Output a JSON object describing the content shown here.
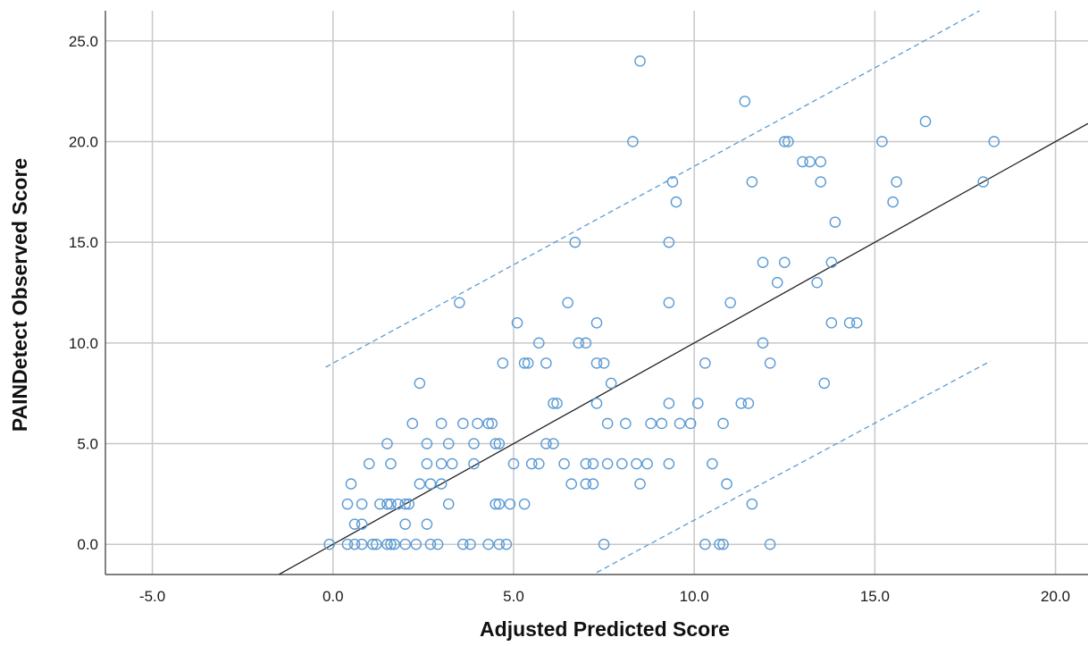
{
  "chart_data": {
    "type": "scatter",
    "xlabel": "Adjusted Predicted Score",
    "ylabel": "PAINDetect Observed Score",
    "xlim": [
      -6.3,
      20.9
    ],
    "ylim": [
      -1.5,
      26.5
    ],
    "x_ticks": [
      -5.0,
      0.0,
      5.0,
      10.0,
      15.0,
      20.0
    ],
    "y_ticks": [
      0.0,
      5.0,
      10.0,
      15.0,
      20.0,
      25.0
    ],
    "x_tick_labels": [
      "-5.0",
      "0.0",
      "5.0",
      "10.0",
      "15.0",
      "20.0"
    ],
    "y_tick_labels": [
      "0.0",
      "5.0",
      "10.0",
      "15.0",
      "20.0",
      "25.0"
    ],
    "grid": true,
    "colors": {
      "points": "#5b9bd5",
      "reference_line": "#222222",
      "bounds": "#5b9bd5",
      "grid": "#c8c8c8"
    },
    "reference_line": {
      "style": "solid",
      "x": [
        -1.6,
        20.9
      ],
      "y": [
        -1.6,
        20.9
      ]
    },
    "bound_lines": [
      {
        "name": "upper",
        "style": "dashed",
        "x": [
          -0.2,
          17.9
        ],
        "y": [
          8.8,
          26.5
        ]
      },
      {
        "name": "lower",
        "style": "dashed",
        "x": [
          7.3,
          18.2
        ],
        "y": [
          -1.4,
          9.1
        ]
      }
    ],
    "points": [
      [
        -0.1,
        0
      ],
      [
        0.4,
        0
      ],
      [
        0.6,
        0
      ],
      [
        0.8,
        0
      ],
      [
        1.1,
        0
      ],
      [
        1.2,
        0
      ],
      [
        1.5,
        0
      ],
      [
        1.6,
        0
      ],
      [
        1.7,
        0
      ],
      [
        2.0,
        0
      ],
      [
        2.3,
        0
      ],
      [
        2.7,
        0
      ],
      [
        2.9,
        0
      ],
      [
        3.6,
        0
      ],
      [
        3.8,
        0
      ],
      [
        4.3,
        0
      ],
      [
        4.6,
        0
      ],
      [
        4.8,
        0
      ],
      [
        7.5,
        0
      ],
      [
        10.3,
        0
      ],
      [
        10.7,
        0
      ],
      [
        10.8,
        0
      ],
      [
        12.1,
        0
      ],
      [
        0.6,
        1
      ],
      [
        0.8,
        1
      ],
      [
        2.0,
        1
      ],
      [
        2.6,
        1
      ],
      [
        0.4,
        2
      ],
      [
        0.8,
        2
      ],
      [
        1.3,
        2
      ],
      [
        1.5,
        2
      ],
      [
        1.6,
        2
      ],
      [
        1.8,
        2
      ],
      [
        2.0,
        2
      ],
      [
        2.1,
        2
      ],
      [
        3.2,
        2
      ],
      [
        4.5,
        2
      ],
      [
        4.6,
        2
      ],
      [
        4.9,
        2
      ],
      [
        5.3,
        2
      ],
      [
        11.6,
        2
      ],
      [
        0.5,
        3
      ],
      [
        2.4,
        3
      ],
      [
        2.7,
        3
      ],
      [
        3.0,
        3
      ],
      [
        6.6,
        3
      ],
      [
        7.0,
        3
      ],
      [
        7.2,
        3
      ],
      [
        8.5,
        3
      ],
      [
        10.9,
        3
      ],
      [
        1.0,
        4
      ],
      [
        1.6,
        4
      ],
      [
        2.6,
        4
      ],
      [
        3.0,
        4
      ],
      [
        3.3,
        4
      ],
      [
        3.9,
        4
      ],
      [
        5.0,
        4
      ],
      [
        5.5,
        4
      ],
      [
        5.7,
        4
      ],
      [
        6.4,
        4
      ],
      [
        7.0,
        4
      ],
      [
        7.2,
        4
      ],
      [
        7.6,
        4
      ],
      [
        8.0,
        4
      ],
      [
        8.4,
        4
      ],
      [
        8.7,
        4
      ],
      [
        9.3,
        4
      ],
      [
        10.5,
        4
      ],
      [
        1.5,
        5
      ],
      [
        2.6,
        5
      ],
      [
        3.2,
        5
      ],
      [
        3.9,
        5
      ],
      [
        4.5,
        5
      ],
      [
        4.6,
        5
      ],
      [
        5.9,
        5
      ],
      [
        6.1,
        5
      ],
      [
        2.2,
        6
      ],
      [
        3.0,
        6
      ],
      [
        3.6,
        6
      ],
      [
        4.0,
        6
      ],
      [
        4.3,
        6
      ],
      [
        4.4,
        6
      ],
      [
        7.6,
        6
      ],
      [
        8.1,
        6
      ],
      [
        8.8,
        6
      ],
      [
        9.1,
        6
      ],
      [
        9.6,
        6
      ],
      [
        9.9,
        6
      ],
      [
        10.8,
        6
      ],
      [
        6.1,
        7
      ],
      [
        6.2,
        7
      ],
      [
        7.3,
        7
      ],
      [
        9.3,
        7
      ],
      [
        10.1,
        7
      ],
      [
        11.3,
        7
      ],
      [
        11.5,
        7
      ],
      [
        2.4,
        8
      ],
      [
        7.7,
        8
      ],
      [
        13.6,
        8
      ],
      [
        4.7,
        9
      ],
      [
        5.3,
        9
      ],
      [
        5.4,
        9
      ],
      [
        5.9,
        9
      ],
      [
        7.3,
        9
      ],
      [
        7.5,
        9
      ],
      [
        10.3,
        9
      ],
      [
        12.1,
        9
      ],
      [
        5.7,
        10
      ],
      [
        6.8,
        10
      ],
      [
        7.0,
        10
      ],
      [
        11.9,
        10
      ],
      [
        5.1,
        11
      ],
      [
        7.3,
        11
      ],
      [
        13.8,
        11
      ],
      [
        14.3,
        11
      ],
      [
        14.5,
        11
      ],
      [
        3.5,
        12
      ],
      [
        6.5,
        12
      ],
      [
        9.3,
        12
      ],
      [
        11.0,
        12
      ],
      [
        12.3,
        13
      ],
      [
        13.4,
        13
      ],
      [
        11.9,
        14
      ],
      [
        12.5,
        14
      ],
      [
        13.8,
        14
      ],
      [
        6.7,
        15
      ],
      [
        9.3,
        15
      ],
      [
        13.9,
        16
      ],
      [
        9.5,
        17
      ],
      [
        15.5,
        17
      ],
      [
        9.4,
        18
      ],
      [
        11.6,
        18
      ],
      [
        13.5,
        18
      ],
      [
        15.6,
        18
      ],
      [
        18.0,
        18
      ],
      [
        13.0,
        19
      ],
      [
        13.2,
        19
      ],
      [
        13.5,
        19
      ],
      [
        8.3,
        20
      ],
      [
        12.5,
        20
      ],
      [
        12.6,
        20
      ],
      [
        15.2,
        20
      ],
      [
        18.3,
        20
      ],
      [
        16.4,
        21
      ],
      [
        11.4,
        22
      ],
      [
        8.5,
        24
      ]
    ]
  }
}
